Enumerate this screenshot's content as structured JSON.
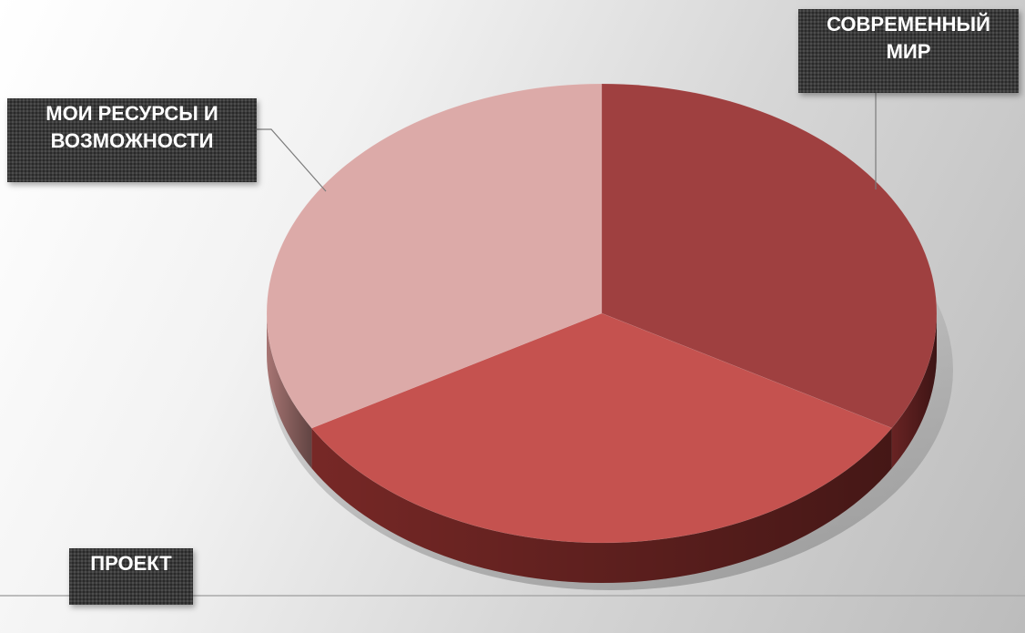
{
  "chart_data": {
    "type": "pie",
    "style": "3d",
    "categories": [
      "СОВРЕМЕННЫЙ МИР",
      "ПРОЕКТ",
      "МОИ РЕСУРСЫ И ВОЗМОЖНОСТИ"
    ],
    "values": [
      33.33,
      33.33,
      33.34
    ],
    "colors": [
      "#9f4040",
      "#c5524f",
      "#dcaaa8"
    ],
    "side_colors": [
      "#6e2525",
      "#7d2a28",
      "#b07b79"
    ],
    "legend": "none",
    "data_labels": "category names"
  },
  "labels": {
    "modern_line1": "СОВРЕМЕННЫЙ",
    "modern_line2": "МИР",
    "resources_line1": "МОИ РЕСУРСЫ И",
    "resources_line2": "ВОЗМОЖНОСТИ",
    "project": "ПРОЕКТ"
  }
}
